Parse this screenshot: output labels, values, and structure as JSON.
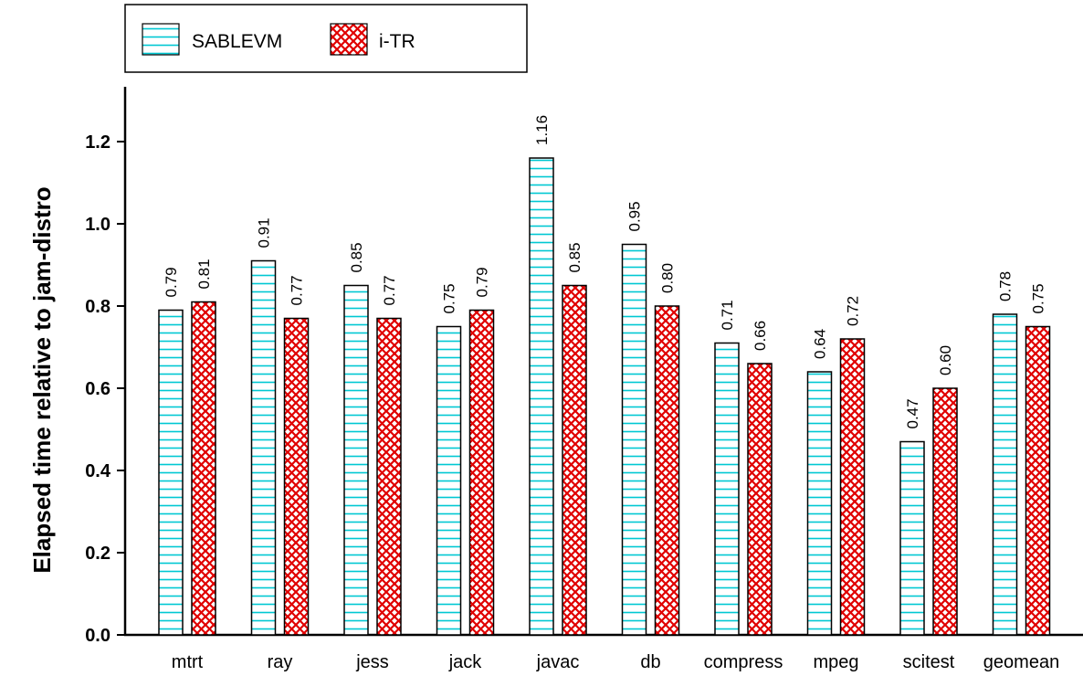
{
  "chart_data": {
    "type": "bar",
    "title": "",
    "xlabel": "",
    "ylabel": "Elapsed time relative to jam-distro",
    "ylim": [
      0,
      1.3
    ],
    "yticks": [
      "0.0",
      "0.2",
      "0.4",
      "0.6",
      "0.8",
      "1.0",
      "1.2"
    ],
    "categories": [
      "mtrt",
      "ray",
      "jess",
      "jack",
      "javac",
      "db",
      "compress",
      "mpeg",
      "scitest",
      "geomean"
    ],
    "series": [
      {
        "name": "SABLEVM",
        "pattern": "horizontal-lines",
        "color": "#00c8d2",
        "values": [
          0.79,
          0.91,
          0.85,
          0.75,
          1.16,
          0.95,
          0.71,
          0.64,
          0.47,
          0.78
        ],
        "labels": [
          "0.79",
          "0.91",
          "0.85",
          "0.75",
          "1.16",
          "0.95",
          "0.71",
          "0.64",
          "0.47",
          "0.78"
        ]
      },
      {
        "name": "i-TR",
        "pattern": "crosshatch",
        "color": "#e00000",
        "values": [
          0.81,
          0.77,
          0.77,
          0.79,
          0.85,
          0.8,
          0.66,
          0.72,
          0.6,
          0.75
        ],
        "labels": [
          "0.81",
          "0.77",
          "0.77",
          "0.79",
          "0.85",
          "0.80",
          "0.66",
          "0.72",
          "0.60",
          "0.75"
        ]
      }
    ],
    "legend_position": "top-left",
    "grid": false
  }
}
